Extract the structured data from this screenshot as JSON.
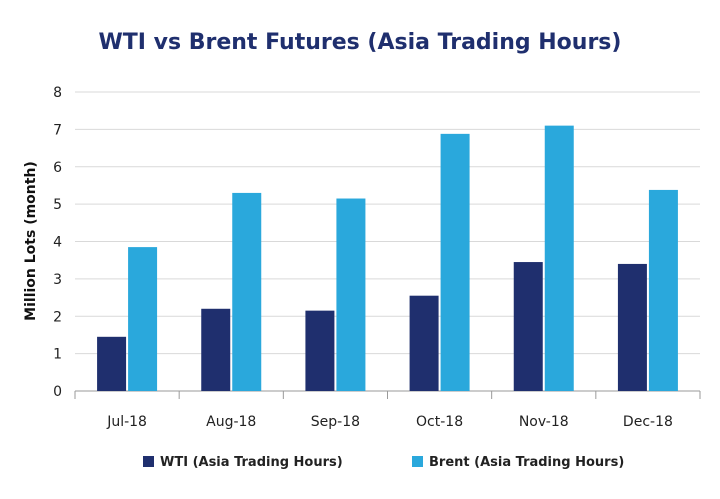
{
  "chart_data": {
    "type": "bar",
    "title": "WTI vs Brent Futures (Asia Trading Hours)",
    "ylabel": "Million Lots (month)",
    "xlabel": "",
    "ylim": [
      0,
      8
    ],
    "yticks": [
      0,
      1,
      2,
      3,
      4,
      5,
      6,
      7,
      8
    ],
    "grid": true,
    "legend": "bottom",
    "categories": [
      "Jul-18",
      "Aug-18",
      "Sep-18",
      "Oct-18",
      "Nov-18",
      "Dec-18"
    ],
    "series": [
      {
        "name": "WTI (Asia Trading Hours)",
        "color": "#1f2f6e",
        "values": [
          1.45,
          2.2,
          2.15,
          2.55,
          3.45,
          3.4
        ]
      },
      {
        "name": "Brent (Asia Trading Hours)",
        "color": "#2aa8dc",
        "values": [
          3.85,
          5.3,
          5.15,
          6.88,
          7.1,
          5.38
        ]
      }
    ]
  }
}
